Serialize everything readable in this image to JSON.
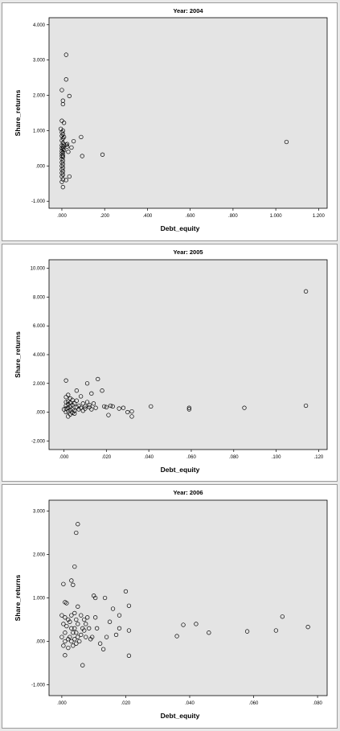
{
  "chart_data": [
    {
      "type": "scatter",
      "title": "Year: 2004",
      "xlabel": "Debt_equity",
      "ylabel": "Share_returns",
      "xlim": [
        -0.06,
        1.24
      ],
      "ylim": [
        -1.2,
        4.2
      ],
      "xticks": [
        0.0,
        0.2,
        0.4,
        0.6,
        0.8,
        1.0,
        1.2
      ],
      "xtick_labels": [
        ".000",
        ".200",
        ".400",
        ".600",
        ".800",
        "1.000",
        "1.200"
      ],
      "yticks": [
        -1.0,
        0.0,
        1.0,
        2.0,
        3.0,
        4.0
      ],
      "ytick_labels": [
        "-1.000",
        ".000",
        "1.000",
        "2.000",
        "3.000",
        "4.000"
      ],
      "grid": false,
      "background": "#e4e4e4",
      "points": [
        [
          0.02,
          3.15
        ],
        [
          0.02,
          2.45
        ],
        [
          0.035,
          1.98
        ],
        [
          0.0,
          2.15
        ],
        [
          0.005,
          1.85
        ],
        [
          0.005,
          1.75
        ],
        [
          0.0,
          1.28
        ],
        [
          0.01,
          1.22
        ],
        [
          -0.005,
          1.05
        ],
        [
          0.005,
          1.0
        ],
        [
          0.0,
          0.95
        ],
        [
          0.005,
          0.9
        ],
        [
          0.0,
          0.85
        ],
        [
          0.01,
          0.82
        ],
        [
          0.005,
          0.78
        ],
        [
          0.0,
          0.72
        ],
        [
          0.005,
          0.65
        ],
        [
          0.01,
          0.6
        ],
        [
          0.0,
          0.58
        ],
        [
          0.005,
          0.55
        ],
        [
          0.0,
          0.5
        ],
        [
          0.005,
          0.48
        ],
        [
          0.01,
          0.45
        ],
        [
          0.0,
          0.42
        ],
        [
          0.005,
          0.38
        ],
        [
          0.0,
          0.35
        ],
        [
          0.005,
          0.3
        ],
        [
          0.0,
          0.28
        ],
        [
          0.005,
          0.25
        ],
        [
          0.0,
          0.2
        ],
        [
          0.005,
          0.15
        ],
        [
          0.0,
          0.1
        ],
        [
          0.005,
          0.05
        ],
        [
          0.0,
          0.0
        ],
        [
          0.005,
          -0.05
        ],
        [
          0.0,
          -0.1
        ],
        [
          0.005,
          -0.15
        ],
        [
          0.0,
          -0.2
        ],
        [
          0.005,
          -0.25
        ],
        [
          0.0,
          -0.3
        ],
        [
          0.005,
          -0.38
        ],
        [
          0.0,
          -0.45
        ],
        [
          0.005,
          -0.6
        ],
        [
          0.02,
          0.6
        ],
        [
          0.025,
          0.55
        ],
        [
          0.03,
          0.4
        ],
        [
          0.02,
          -0.4
        ],
        [
          0.035,
          -0.3
        ],
        [
          0.025,
          0.62
        ],
        [
          0.045,
          0.52
        ],
        [
          0.055,
          0.7
        ],
        [
          0.09,
          0.82
        ],
        [
          0.095,
          0.28
        ],
        [
          0.19,
          0.32
        ],
        [
          1.05,
          0.68
        ]
      ]
    },
    {
      "type": "scatter",
      "title": "Year: 2005",
      "xlabel": "Debt_equity",
      "ylabel": "Share_returns",
      "xlim": [
        -0.007,
        0.124
      ],
      "ylim": [
        -2.6,
        10.6
      ],
      "xticks": [
        0.0,
        0.02,
        0.04,
        0.06,
        0.08,
        0.1,
        0.12
      ],
      "xtick_labels": [
        ".000",
        ".020",
        ".040",
        ".060",
        ".080",
        ".100",
        ".120"
      ],
      "yticks": [
        -2.0,
        0.0,
        2.0,
        4.0,
        6.0,
        8.0,
        10.0
      ],
      "ytick_labels": [
        "-2.000",
        ".000",
        "2.000",
        "4.000",
        "6.000",
        "8.000",
        "10.000"
      ],
      "grid": false,
      "background": "#e4e4e4",
      "points": [
        [
          0.001,
          2.2
        ],
        [
          0.002,
          1.2
        ],
        [
          0.001,
          1.05
        ],
        [
          0.003,
          0.95
        ],
        [
          0.004,
          0.85
        ],
        [
          0.002,
          0.75
        ],
        [
          0.001,
          0.7
        ],
        [
          0.003,
          0.65
        ],
        [
          0.005,
          0.6
        ],
        [
          0.002,
          0.55
        ],
        [
          0.004,
          0.5
        ],
        [
          0.001,
          0.45
        ],
        [
          0.003,
          0.4
        ],
        [
          0.006,
          0.35
        ],
        [
          0.002,
          0.3
        ],
        [
          0.001,
          0.25
        ],
        [
          0.004,
          0.2
        ],
        [
          0.0,
          0.2
        ],
        [
          0.003,
          0.15
        ],
        [
          0.005,
          0.1
        ],
        [
          0.002,
          0.05
        ],
        [
          0.001,
          0.0
        ],
        [
          0.004,
          -0.05
        ],
        [
          0.003,
          -0.15
        ],
        [
          0.002,
          -0.3
        ],
        [
          0.005,
          -0.1
        ],
        [
          0.006,
          1.5
        ],
        [
          0.006,
          0.8
        ],
        [
          0.007,
          0.2
        ],
        [
          0.007,
          0.45
        ],
        [
          0.008,
          0.3
        ],
        [
          0.008,
          1.1
        ],
        [
          0.009,
          0.6
        ],
        [
          0.009,
          0.1
        ],
        [
          0.01,
          0.4
        ],
        [
          0.01,
          0.25
        ],
        [
          0.011,
          2.0
        ],
        [
          0.011,
          0.7
        ],
        [
          0.012,
          0.35
        ],
        [
          0.012,
          0.5
        ],
        [
          0.013,
          1.3
        ],
        [
          0.013,
          0.2
        ],
        [
          0.014,
          0.6
        ],
        [
          0.015,
          0.3
        ],
        [
          0.016,
          2.3
        ],
        [
          0.018,
          1.5
        ],
        [
          0.019,
          0.4
        ],
        [
          0.02,
          0.35
        ],
        [
          0.021,
          -0.2
        ],
        [
          0.022,
          0.45
        ],
        [
          0.023,
          0.4
        ],
        [
          0.026,
          0.25
        ],
        [
          0.028,
          0.3
        ],
        [
          0.03,
          0.0
        ],
        [
          0.032,
          0.05
        ],
        [
          0.032,
          -0.3
        ],
        [
          0.041,
          0.4
        ],
        [
          0.059,
          0.3
        ],
        [
          0.059,
          0.2
        ],
        [
          0.085,
          0.3
        ],
        [
          0.114,
          0.45
        ],
        [
          0.114,
          8.4
        ]
      ]
    },
    {
      "type": "scatter",
      "title": "Year: 2006",
      "xlabel": "Debt_equity",
      "ylabel": "Share_returns",
      "xlim": [
        -0.004,
        0.083
      ],
      "ylim": [
        -1.25,
        3.25
      ],
      "xticks": [
        0.0,
        0.02,
        0.04,
        0.06,
        0.08
      ],
      "xtick_labels": [
        ".000",
        ".020",
        ".040",
        ".060",
        ".080"
      ],
      "yticks": [
        -1.0,
        0.0,
        1.0,
        2.0,
        3.0
      ],
      "ytick_labels": [
        "-1.000",
        ".000",
        "1.000",
        "2.000",
        "3.000"
      ],
      "grid": false,
      "background": "#e4e4e4",
      "points": [
        [
          0.0005,
          1.32
        ],
        [
          0.001,
          0.9
        ],
        [
          0.0015,
          0.88
        ],
        [
          0.0,
          0.6
        ],
        [
          0.001,
          0.55
        ],
        [
          0.002,
          0.5
        ],
        [
          0.0005,
          0.4
        ],
        [
          0.0015,
          0.35
        ],
        [
          0.001,
          0.2
        ],
        [
          0.0,
          0.1
        ],
        [
          0.002,
          0.05
        ],
        [
          0.001,
          0.0
        ],
        [
          0.0005,
          -0.1
        ],
        [
          0.002,
          -0.15
        ],
        [
          0.001,
          -0.32
        ],
        [
          0.003,
          0.6
        ],
        [
          0.0025,
          0.45
        ],
        [
          0.003,
          0.3
        ],
        [
          0.0035,
          0.2
        ],
        [
          0.0025,
          0.1
        ],
        [
          0.003,
          0.0
        ],
        [
          0.0035,
          -0.1
        ],
        [
          0.003,
          1.4
        ],
        [
          0.0035,
          1.3
        ],
        [
          0.004,
          1.72
        ],
        [
          0.0045,
          2.5
        ],
        [
          0.005,
          2.7
        ],
        [
          0.004,
          0.65
        ],
        [
          0.0045,
          0.5
        ],
        [
          0.005,
          0.4
        ],
        [
          0.004,
          0.3
        ],
        [
          0.0045,
          0.2
        ],
        [
          0.005,
          0.1
        ],
        [
          0.004,
          0.05
        ],
        [
          0.0045,
          -0.05
        ],
        [
          0.005,
          0.8
        ],
        [
          0.006,
          0.6
        ],
        [
          0.0065,
          0.3
        ],
        [
          0.006,
          0.15
        ],
        [
          0.0055,
          0.0
        ],
        [
          0.0065,
          -0.55
        ],
        [
          0.007,
          0.5
        ],
        [
          0.0075,
          0.4
        ],
        [
          0.007,
          0.25
        ],
        [
          0.0075,
          0.1
        ],
        [
          0.008,
          0.55
        ],
        [
          0.0085,
          0.3
        ],
        [
          0.009,
          0.05
        ],
        [
          0.0095,
          0.1
        ],
        [
          0.01,
          1.05
        ],
        [
          0.0105,
          1.0
        ],
        [
          0.0105,
          0.55
        ],
        [
          0.011,
          0.3
        ],
        [
          0.012,
          -0.05
        ],
        [
          0.013,
          -0.18
        ],
        [
          0.0135,
          1.0
        ],
        [
          0.014,
          0.1
        ],
        [
          0.015,
          0.45
        ],
        [
          0.016,
          0.75
        ],
        [
          0.017,
          0.15
        ],
        [
          0.018,
          0.6
        ],
        [
          0.018,
          0.3
        ],
        [
          0.02,
          1.15
        ],
        [
          0.021,
          0.82
        ],
        [
          0.021,
          0.25
        ],
        [
          0.021,
          -0.33
        ],
        [
          0.036,
          0.12
        ],
        [
          0.038,
          0.38
        ],
        [
          0.042,
          0.4
        ],
        [
          0.046,
          0.2
        ],
        [
          0.058,
          0.23
        ],
        [
          0.067,
          0.25
        ],
        [
          0.069,
          0.57
        ],
        [
          0.077,
          0.33
        ]
      ]
    }
  ]
}
